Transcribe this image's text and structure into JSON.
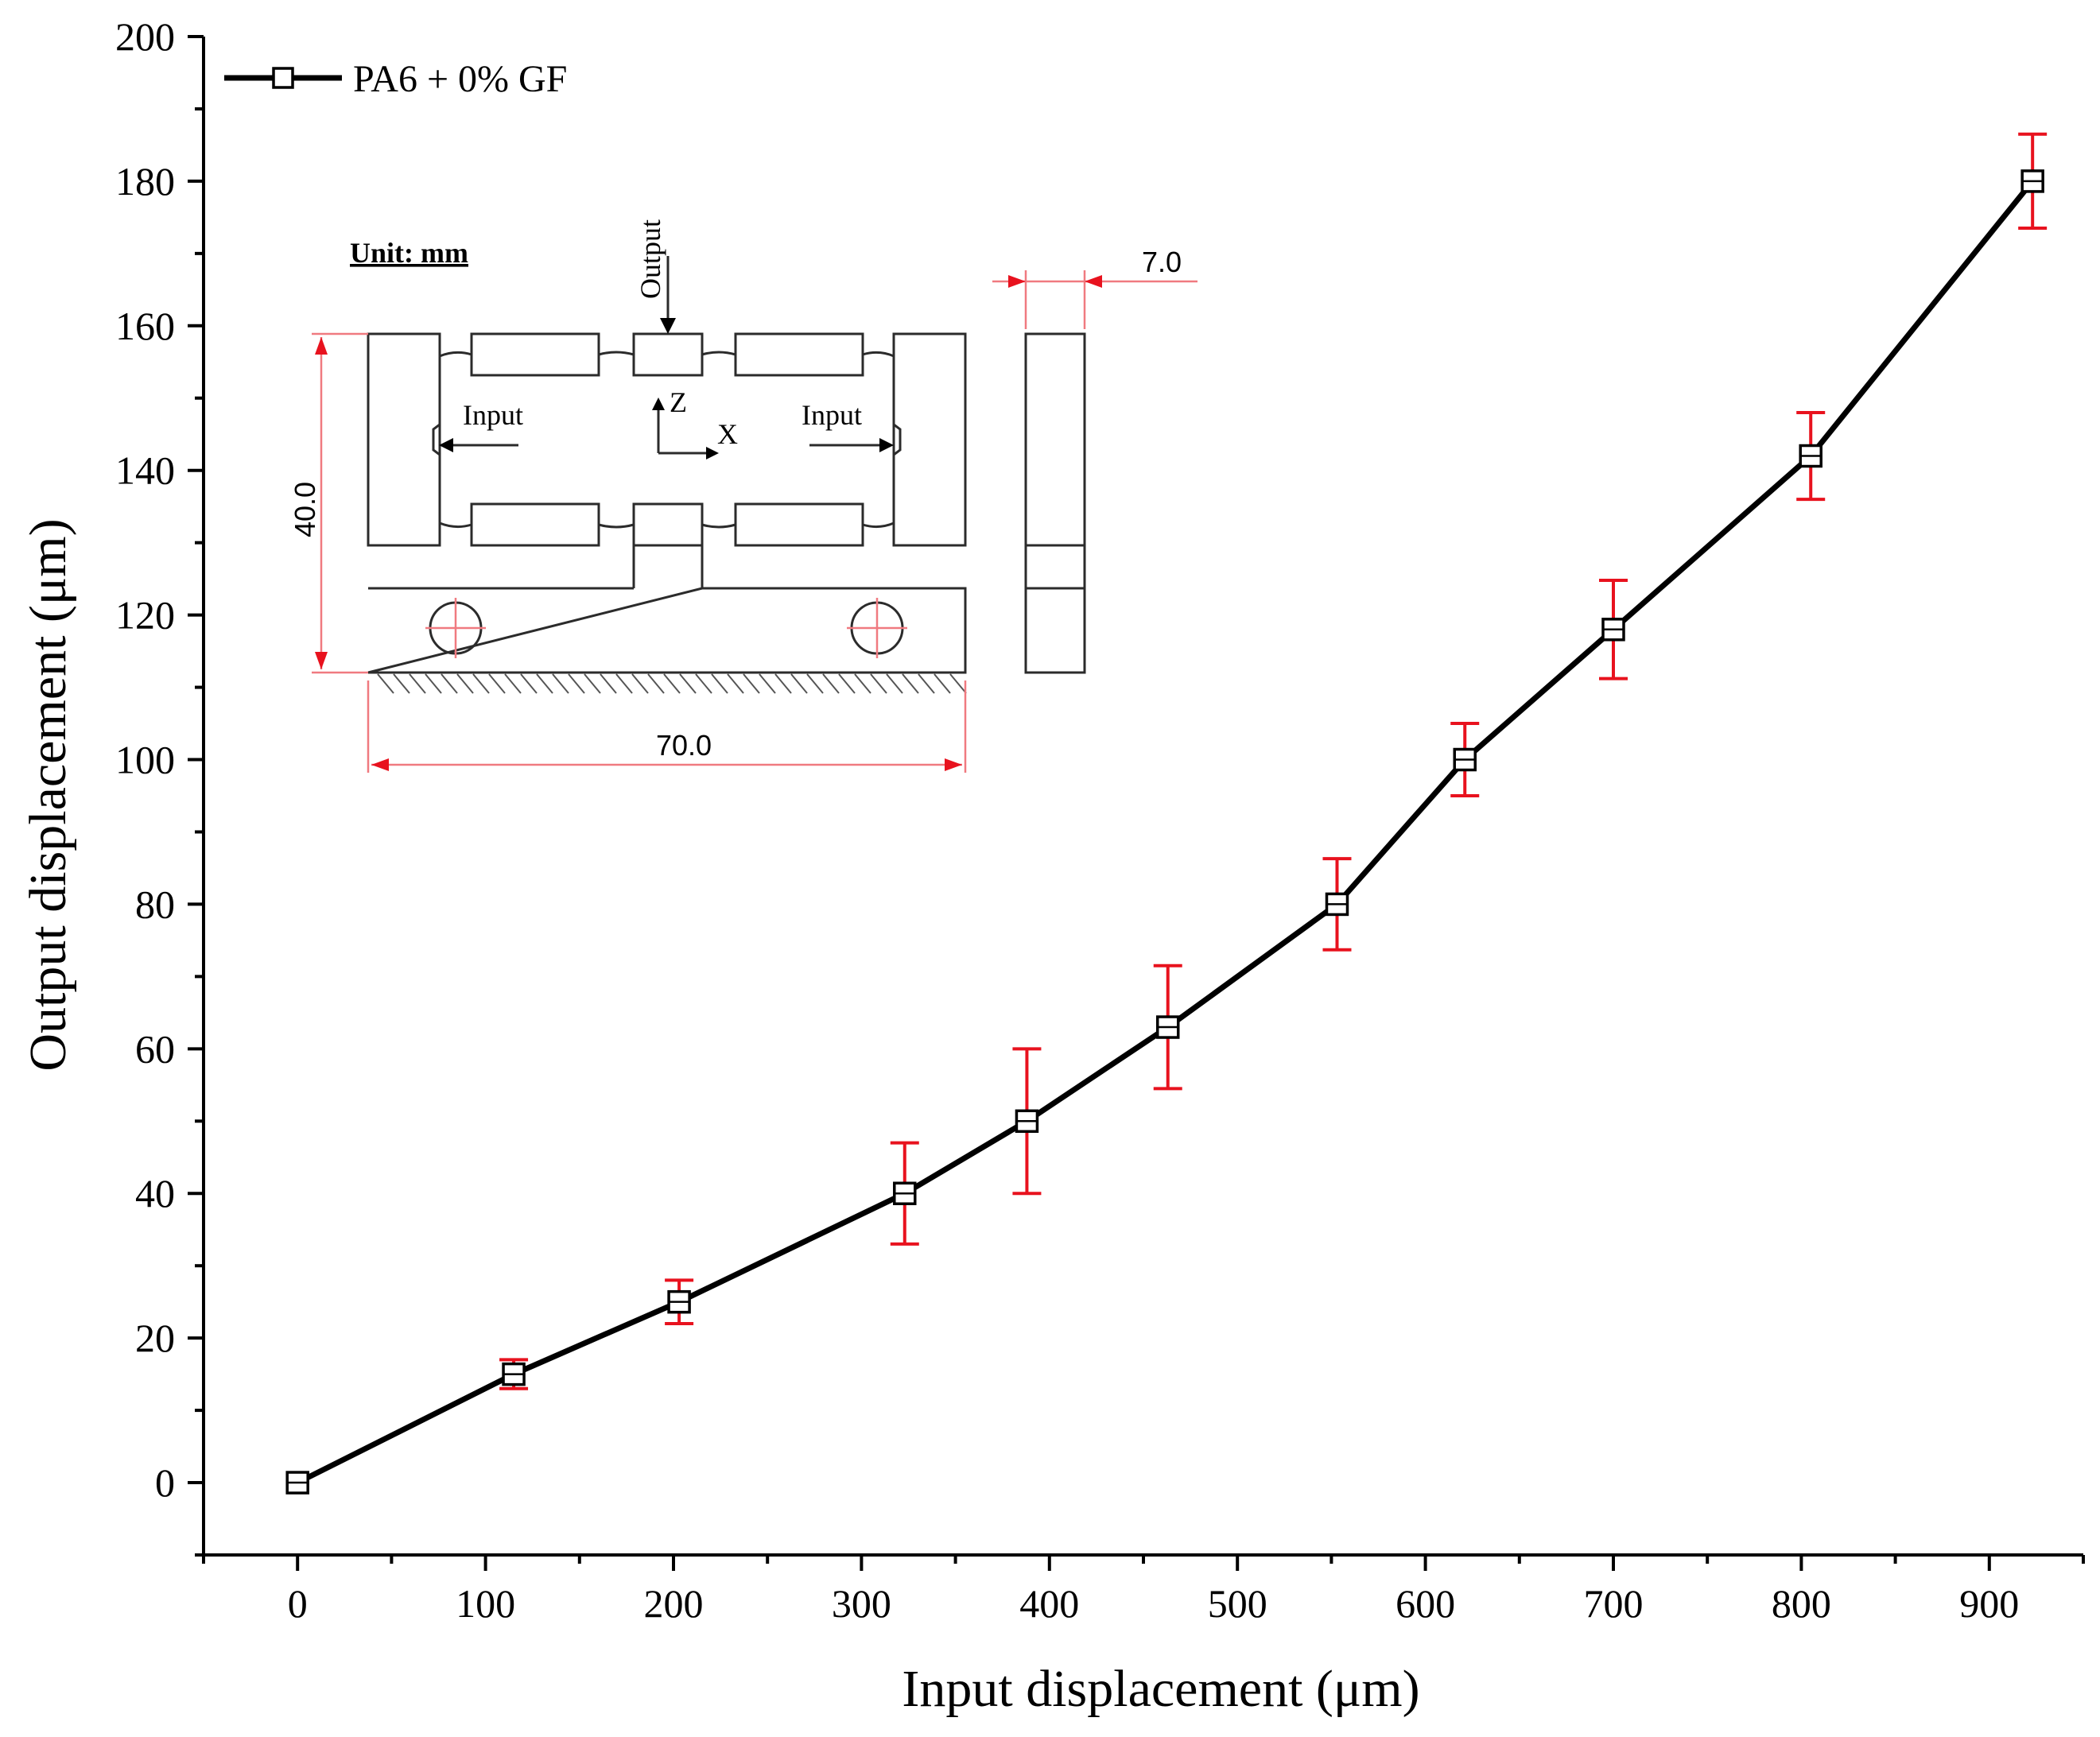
{
  "chart_data": {
    "type": "line",
    "xlabel": "Input displacement (μm)",
    "ylabel": "Output displacement (μm)",
    "xlim": [
      -50,
      950
    ],
    "ylim": [
      -10,
      200
    ],
    "x_ticks": [
      0,
      100,
      200,
      300,
      400,
      500,
      600,
      700,
      800,
      900
    ],
    "y_ticks": [
      0,
      20,
      40,
      60,
      80,
      100,
      120,
      140,
      160,
      180,
      200
    ],
    "legend_position": "top-left",
    "grid": false,
    "series": [
      {
        "name": "PA6 + 0% GF",
        "color": "#000000",
        "marker": "open-square",
        "x": [
          0,
          115,
          203,
          323,
          388,
          463,
          553,
          621,
          700,
          805,
          923
        ],
        "y": [
          0,
          15,
          25,
          40,
          50,
          63,
          80,
          100,
          118,
          142,
          180
        ],
        "error": [
          0,
          2,
          3,
          7,
          10,
          8.5,
          6.3,
          5,
          6.8,
          6,
          6.5
        ],
        "error_color": "#e8121e"
      }
    ]
  },
  "inset": {
    "unit_label": "Unit: mm",
    "output_label": "Output",
    "input_left_label": "Input",
    "input_right_label": "Input",
    "axis_z_label": "Z",
    "axis_x_label": "X",
    "dim_width": "70.0",
    "dim_height": "40.0",
    "dim_thickness": "7.0"
  }
}
